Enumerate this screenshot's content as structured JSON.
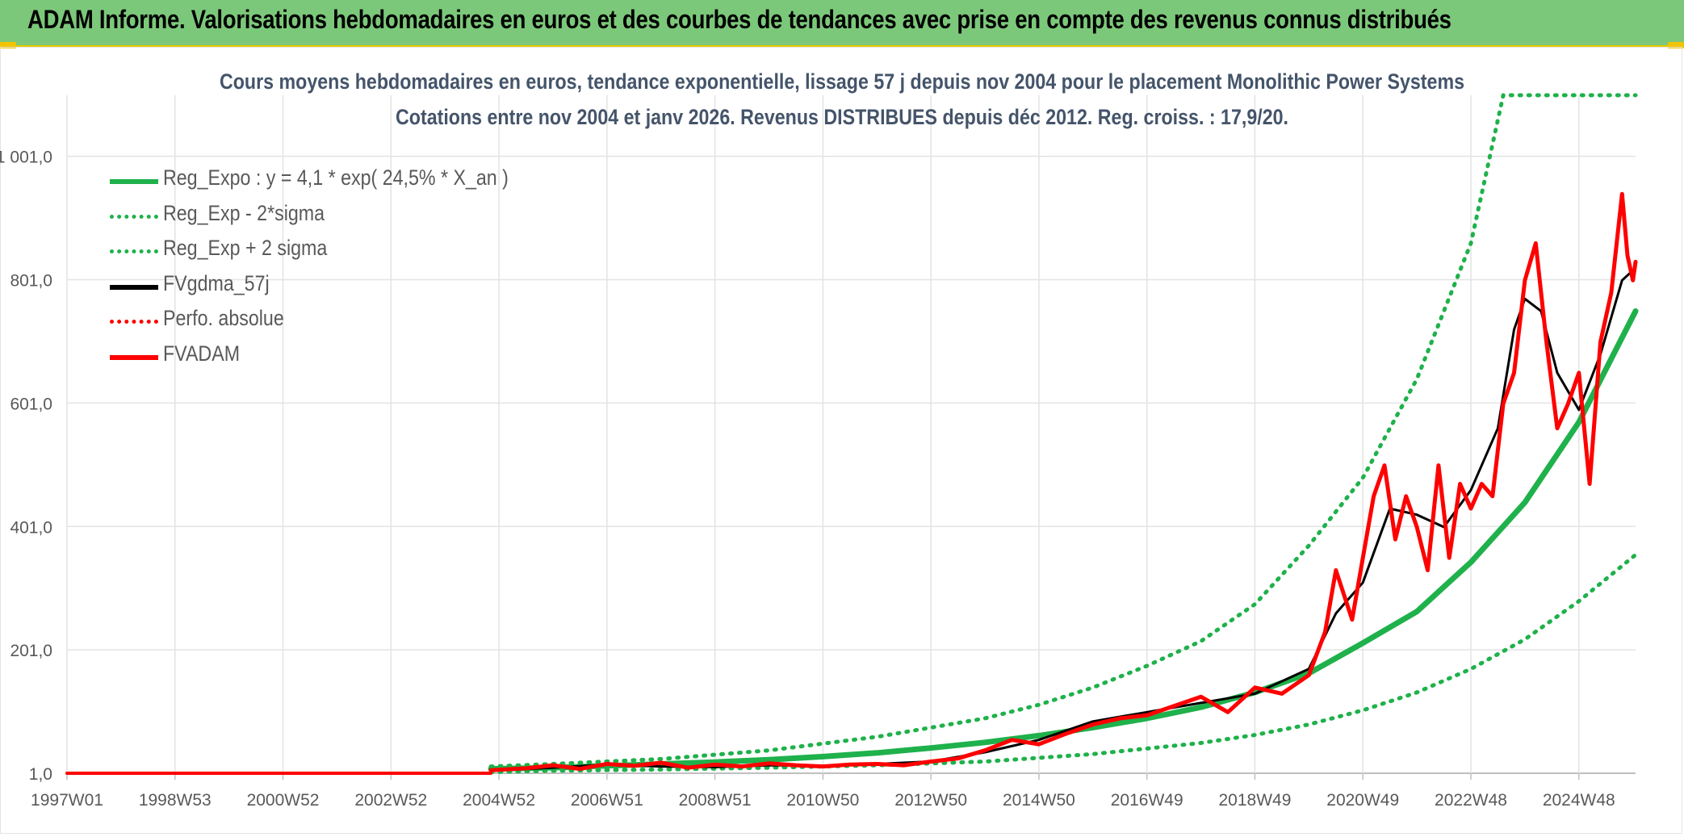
{
  "header": {
    "title": "ADAM Informe. Valorisations hebdomadaires en euros et des courbes de tendances avec prise en compte des revenus connus distribués"
  },
  "chart_data": {
    "type": "line",
    "title": "Cours moyens hebdomadaires en euros, tendance exponentielle, lissage 57 j depuis nov 2004 pour le placement Monolithic Power Systems",
    "subtitle": "Cotations entre nov 2004 et janv 2026. Revenus DISTRIBUES depuis déc 2012. Reg. croiss. : 17,9/20.",
    "xlabel": "",
    "ylabel": "",
    "x_ticks": [
      "1997W01",
      "1998W53",
      "2000W52",
      "2002W52",
      "2004W52",
      "2006W51",
      "2008W51",
      "2010W50",
      "2012W50",
      "2014W50",
      "2016W49",
      "2018W49",
      "2020W49",
      "2022W48",
      "2024W48"
    ],
    "y_ticks": [
      "1,0",
      "201,0",
      "401,0",
      "601,0",
      "801,0",
      "1 001,0"
    ],
    "ylim": [
      1,
      1100
    ],
    "xlim": [
      1997.0,
      2026.05
    ],
    "grid": true,
    "legend_position": "top-left",
    "series": [
      {
        "name": "Reg_Expo : y = 4,1 * exp( 24,5% *  X_an )",
        "color": "#1fb14b",
        "style": "solid",
        "x": [
          2004.85,
          2006,
          2007,
          2008,
          2009,
          2010,
          2011,
          2012,
          2013,
          2014,
          2015,
          2016,
          2017,
          2018,
          2019,
          2020,
          2021,
          2022,
          2023,
          2024,
          2025,
          2026.05
        ],
        "y": [
          8,
          10,
          13,
          16,
          19,
          23,
          28,
          34,
          42,
          51,
          62,
          75,
          90,
          108,
          132,
          163,
          212,
          263,
          343,
          440,
          570,
          750
        ]
      },
      {
        "name": "Reg_Exp - 2*sigma",
        "color": "#1fb14b",
        "style": "dotted",
        "x": [
          2004.85,
          2006,
          2008,
          2010,
          2012,
          2014,
          2016,
          2018,
          2019,
          2020,
          2021,
          2022,
          2023,
          2024,
          2025,
          2026.05
        ],
        "y": [
          3,
          5,
          7,
          10,
          14,
          20,
          32,
          50,
          63,
          80,
          103,
          132,
          170,
          218,
          280,
          355
        ]
      },
      {
        "name": "Reg_Exp + 2 sigma",
        "color": "#1fb14b",
        "style": "dotted",
        "x": [
          2004.85,
          2006,
          2008,
          2010,
          2012,
          2014,
          2015,
          2016,
          2017,
          2018,
          2019,
          2020,
          2021,
          2022,
          2023,
          2023.6,
          2026.05
        ],
        "y": [
          12,
          16,
          24,
          38,
          60,
          90,
          112,
          140,
          175,
          215,
          275,
          370,
          480,
          640,
          860,
          1100,
          1100
        ]
      },
      {
        "name": "FVgdma_57j",
        "color": "#000000",
        "style": "solid",
        "x": [
          2004.85,
          2006,
          2007,
          2008,
          2009,
          2010,
          2011,
          2012,
          2013,
          2014,
          2015,
          2016,
          2017,
          2018,
          2019,
          2020,
          2020.5,
          2021,
          2021.5,
          2022,
          2022.5,
          2023,
          2023.5,
          2023.8,
          2024,
          2024.3,
          2024.6,
          2025,
          2025.4,
          2025.8,
          2026.05
        ],
        "y": [
          5,
          10,
          15,
          12,
          11,
          14,
          13,
          16,
          20,
          35,
          55,
          85,
          100,
          115,
          130,
          170,
          260,
          310,
          430,
          420,
          400,
          460,
          560,
          720,
          770,
          750,
          650,
          590,
          680,
          800,
          820
        ]
      },
      {
        "name": "Perfo. absolue",
        "color": "#ff0000",
        "style": "dotted",
        "x": [
          1997.0,
          2004.85
        ],
        "y": [
          1,
          1
        ]
      },
      {
        "name": "FVADAM",
        "color": "#ff0000",
        "style": "solid",
        "x": [
          2004.85,
          2005.5,
          2006,
          2006.5,
          2007,
          2007.5,
          2008,
          2008.5,
          2009,
          2009.5,
          2010,
          2010.5,
          2011,
          2011.5,
          2012,
          2012.5,
          2013,
          2013.5,
          2014,
          2014.5,
          2015,
          2015.5,
          2016,
          2016.5,
          2017,
          2017.5,
          2018,
          2018.5,
          2019,
          2019.5,
          2020,
          2020.3,
          2020.5,
          2020.8,
          2021,
          2021.2,
          2021.4,
          2021.6,
          2021.8,
          2022,
          2022.2,
          2022.4,
          2022.6,
          2022.8,
          2023,
          2023.2,
          2023.4,
          2023.6,
          2023.8,
          2024,
          2024.2,
          2024.4,
          2024.6,
          2024.8,
          2025,
          2025.2,
          2025.4,
          2025.6,
          2025.8,
          2025.9,
          2026,
          2026.05
        ],
        "y": [
          6,
          9,
          14,
          8,
          16,
          13,
          18,
          10,
          15,
          12,
          17,
          14,
          12,
          15,
          16,
          14,
          20,
          25,
          38,
          55,
          48,
          65,
          80,
          90,
          95,
          110,
          125,
          100,
          140,
          130,
          160,
          230,
          330,
          250,
          350,
          450,
          500,
          380,
          450,
          400,
          330,
          500,
          350,
          470,
          430,
          470,
          450,
          600,
          650,
          800,
          860,
          700,
          560,
          600,
          650,
          470,
          700,
          780,
          940,
          840,
          800,
          830
        ]
      }
    ]
  }
}
